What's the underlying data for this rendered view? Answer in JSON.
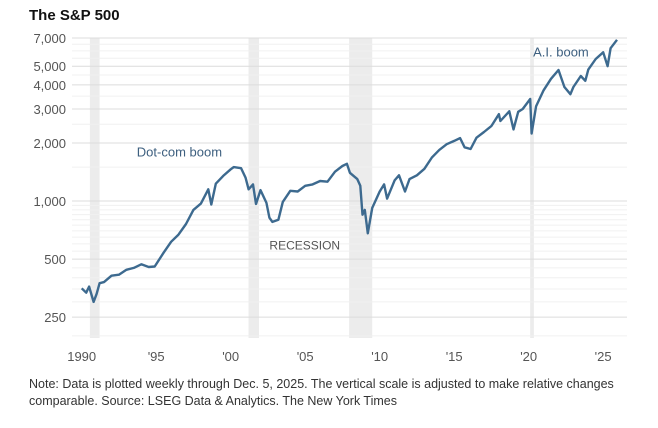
{
  "chart_data": {
    "type": "line",
    "title": "The S&P 500",
    "xlabel": "",
    "ylabel": "",
    "yscale": "log",
    "ylim": [
      195,
      7000
    ],
    "xlim": [
      1989.35,
      2026.6
    ],
    "grid": true,
    "y_ticks": [
      {
        "value": 7000,
        "label": "7,000"
      },
      {
        "value": 5000,
        "label": "5,000"
      },
      {
        "value": 4000,
        "label": "4,000"
      },
      {
        "value": 3000,
        "label": "3,000"
      },
      {
        "value": 2000,
        "label": "2,000"
      },
      {
        "value": 1000,
        "label": "1,000"
      },
      {
        "value": 500,
        "label": "500"
      },
      {
        "value": 250,
        "label": "250"
      }
    ],
    "x_ticks": [
      {
        "value": 1990,
        "label": "1990"
      },
      {
        "value": 1995,
        "label": "'95"
      },
      {
        "value": 2000,
        "label": "'00"
      },
      {
        "value": 2005,
        "label": "'05"
      },
      {
        "value": 2010,
        "label": "'10"
      },
      {
        "value": 2015,
        "label": "'15"
      },
      {
        "value": 2020,
        "label": "'20"
      },
      {
        "value": 2025,
        "label": "'25"
      }
    ],
    "recessions": [
      [
        1990.55,
        1991.2
      ],
      [
        2001.2,
        2001.9
      ],
      [
        2007.95,
        2009.5
      ],
      [
        2020.1,
        2020.35
      ]
    ],
    "annotations": [
      {
        "text": "Dot-com boom",
        "x": 1993.7,
        "y": 1700
      },
      {
        "text": "RECESSION",
        "x": 2002.6,
        "y": 560
      },
      {
        "text": "A.I. boom",
        "x": 2020.3,
        "y": 5600
      }
    ],
    "series": [
      {
        "name": "S&P 500",
        "color": "#3d6a8f",
        "x": [
          1990.0,
          1990.3,
          1990.5,
          1990.8,
          1991.0,
          1991.2,
          1991.5,
          1992.0,
          1992.5,
          1993.0,
          1993.5,
          1994.0,
          1994.5,
          1994.9,
          1995.5,
          1996.0,
          1996.5,
          1997.0,
          1997.5,
          1998.0,
          1998.5,
          1998.7,
          1999.0,
          1999.5,
          2000.0,
          2000.2,
          2000.7,
          2001.0,
          2001.2,
          2001.5,
          2001.7,
          2002.0,
          2002.4,
          2002.6,
          2002.8,
          2003.2,
          2003.5,
          2004.0,
          2004.5,
          2005.0,
          2005.5,
          2006.0,
          2006.5,
          2007.0,
          2007.5,
          2007.8,
          2008.0,
          2008.5,
          2008.7,
          2008.85,
          2009.0,
          2009.2,
          2009.5,
          2010.0,
          2010.3,
          2010.5,
          2011.0,
          2011.3,
          2011.7,
          2012.0,
          2012.5,
          2013.0,
          2013.5,
          2014.0,
          2014.5,
          2015.0,
          2015.4,
          2015.7,
          2016.1,
          2016.5,
          2017.0,
          2017.5,
          2018.0,
          2018.1,
          2018.7,
          2018.98,
          2019.3,
          2019.6,
          2020.1,
          2020.2,
          2020.5,
          2021.0,
          2021.5,
          2022.0,
          2022.4,
          2022.8,
          2023.0,
          2023.5,
          2023.8,
          2024.0,
          2024.5,
          2025.0,
          2025.3,
          2025.5,
          2025.93
        ],
        "values": [
          353,
          335,
          360,
          300,
          330,
          375,
          380,
          410,
          415,
          440,
          450,
          470,
          455,
          458,
          540,
          615,
          670,
          760,
          900,
          970,
          1150,
          960,
          1230,
          1350,
          1460,
          1500,
          1480,
          1320,
          1150,
          1220,
          965,
          1140,
          980,
          820,
          780,
          800,
          990,
          1130,
          1120,
          1200,
          1220,
          1270,
          1260,
          1420,
          1520,
          1560,
          1400,
          1300,
          1200,
          850,
          900,
          680,
          920,
          1120,
          1220,
          1030,
          1280,
          1360,
          1120,
          1300,
          1360,
          1470,
          1680,
          1840,
          1970,
          2050,
          2120,
          1900,
          1860,
          2130,
          2280,
          2450,
          2820,
          2600,
          2920,
          2350,
          2900,
          3000,
          3380,
          2240,
          3100,
          3750,
          4300,
          4780,
          3900,
          3580,
          3900,
          4450,
          4200,
          4800,
          5450,
          5900,
          5000,
          6200,
          6850
        ]
      }
    ]
  },
  "note": "Note: Data is plotted weekly through Dec. 5, 2025. The vertical scale is adjusted to make relative changes comparable.  Source: LSEG Data & Analytics.  The New York Times"
}
